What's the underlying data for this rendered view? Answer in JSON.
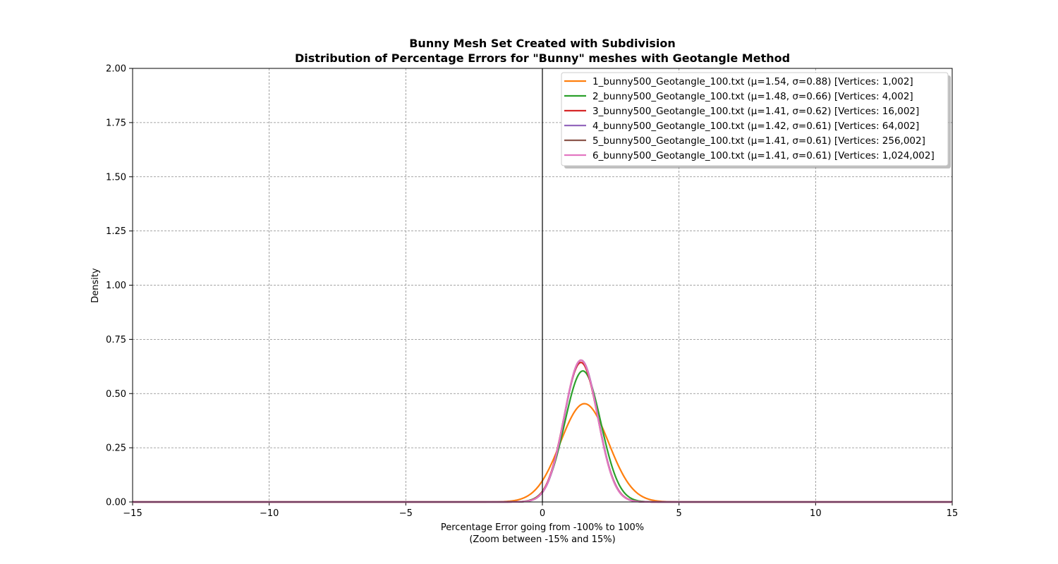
{
  "chart_data": {
    "type": "line",
    "title": "Bunny Mesh Set Created with Subdivision",
    "subtitle": "Distribution of Percentage Errors for \"Bunny\" meshes with Geotangle Method",
    "xlabel": "Percentage Error going from -100% to 100%",
    "xlabel_note": "(Zoom between -15% and 15%)",
    "ylabel": "Density",
    "xlim": [
      -15,
      15
    ],
    "ylim": [
      0,
      2.0
    ],
    "x_ticks": [
      "−15",
      "−10",
      "−5",
      "0",
      "5",
      "10",
      "15"
    ],
    "x_tick_values": [
      -15,
      -10,
      -5,
      0,
      5,
      10,
      15
    ],
    "y_ticks": [
      "0.00",
      "0.25",
      "0.50",
      "0.75",
      "1.00",
      "1.25",
      "1.50",
      "1.75",
      "2.00"
    ],
    "y_tick_values": [
      0,
      0.25,
      0.5,
      0.75,
      1.0,
      1.25,
      1.5,
      1.75,
      2.0
    ],
    "grid": true,
    "vertical_reference_line_x": 0,
    "legend_position": "upper-right",
    "series": [
      {
        "name": "1_bunny500_Geotangle_100.txt (μ=1.54, σ=0.88) [Vertices: 1,002]",
        "mu": 1.54,
        "sigma": 0.88,
        "color": "#ff7f0e"
      },
      {
        "name": "2_bunny500_Geotangle_100.txt (μ=1.48, σ=0.66) [Vertices: 4,002]",
        "mu": 1.48,
        "sigma": 0.66,
        "color": "#2ca02c"
      },
      {
        "name": "3_bunny500_Geotangle_100.txt (μ=1.41, σ=0.62) [Vertices: 16,002]",
        "mu": 1.41,
        "sigma": 0.62,
        "color": "#d62728"
      },
      {
        "name": "4_bunny500_Geotangle_100.txt (μ=1.42, σ=0.61) [Vertices: 64,002]",
        "mu": 1.42,
        "sigma": 0.61,
        "color": "#9467bd"
      },
      {
        "name": "5_bunny500_Geotangle_100.txt (μ=1.41, σ=0.61) [Vertices: 256,002]",
        "mu": 1.41,
        "sigma": 0.61,
        "color": "#8c564b"
      },
      {
        "name": "6_bunny500_Geotangle_100.txt (μ=1.41, σ=0.61) [Vertices: 1,024,002]",
        "mu": 1.41,
        "sigma": 0.61,
        "color": "#e377c2"
      }
    ]
  }
}
